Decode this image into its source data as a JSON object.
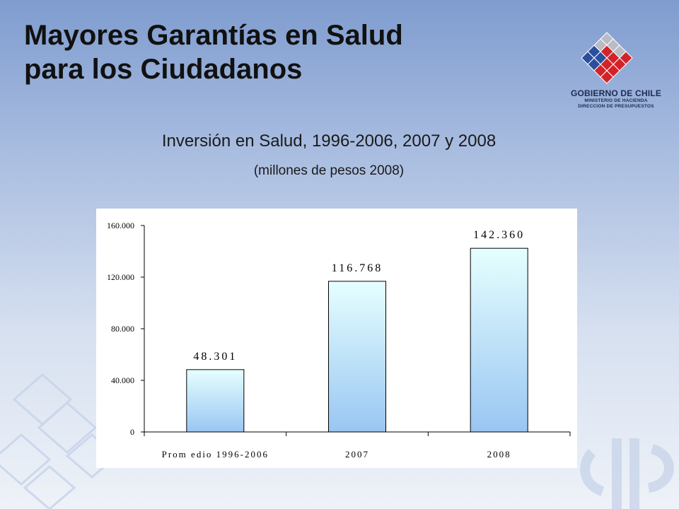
{
  "slide": {
    "title_line1": "Mayores Garantías en Salud",
    "title_line2": "para los Ciudadanos"
  },
  "logo": {
    "line1": "GOBIERNO DE CHILE",
    "line2": "MINISTERIO DE HACIENDA",
    "line3": "DIRECCION DE PRESUPUESTOS",
    "colors": {
      "blue": "#2b4f9e",
      "red": "#d3232a",
      "gray": "#b9bcc4"
    }
  },
  "chart_data": {
    "type": "bar",
    "title": "Inversión en Salud, 1996-2006, 2007 y 2008",
    "subtitle": "(millones de pesos 2008)",
    "categories": [
      "Prom edio 1996-2006",
      "2007",
      "2008"
    ],
    "values": [
      48301,
      116768,
      142360
    ],
    "value_labels": [
      "48.301",
      "116.768",
      "142.360"
    ],
    "yticks": [
      0,
      40000,
      80000,
      120000,
      160000
    ],
    "ytick_labels": [
      "0",
      "40.000",
      "80.000",
      "120.000",
      "160.000"
    ],
    "ylim": [
      0,
      160000
    ],
    "xlabel": "",
    "ylabel": "",
    "grid": false,
    "legend": "none",
    "bar_gradient": [
      "#e6ffff",
      "#99c6f2"
    ]
  }
}
